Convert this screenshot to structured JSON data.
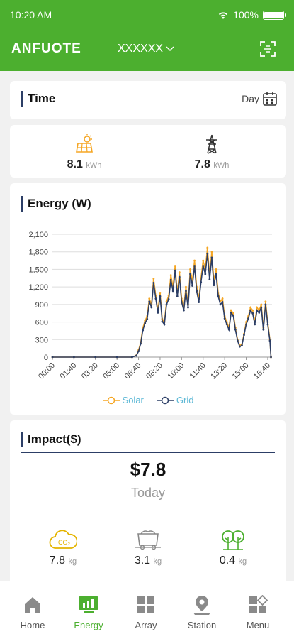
{
  "status_bar": {
    "time": "10:20 AM",
    "battery": "100%",
    "battery_level": 1.0
  },
  "header": {
    "brand": "ANFUOTE",
    "station": "XXXXXX"
  },
  "time_card": {
    "title": "Time",
    "period": "Day"
  },
  "summary": {
    "solar": {
      "value": "8.1",
      "unit": "kWh",
      "icon": "solar-panel-icon"
    },
    "grid": {
      "value": "7.8",
      "unit": "kWh",
      "icon": "power-tower-icon"
    }
  },
  "energy_card": {
    "title": "Energy (W)"
  },
  "chart_data": {
    "type": "line",
    "title": "Energy (W)",
    "xlabel": "",
    "ylabel": "",
    "ylim": [
      0,
      2100
    ],
    "yticks": [
      "0",
      "300",
      "600",
      "900",
      "1,200",
      "1,500",
      "1,800",
      "2,100"
    ],
    "xticks": [
      "00:00",
      "01:40",
      "03:20",
      "05:00",
      "06:40",
      "08:20",
      "10:00",
      "11:40",
      "13:20",
      "15:00",
      "16:40"
    ],
    "x_range": [
      0,
      1020
    ],
    "legend_position": "bottom-center",
    "series": [
      {
        "name": "Solar",
        "color": "#f5a623",
        "x": [
          0,
          100,
          200,
          300,
          370,
          390,
          400,
          410,
          420,
          430,
          440,
          450,
          460,
          470,
          480,
          490,
          500,
          510,
          520,
          530,
          540,
          550,
          560,
          570,
          580,
          590,
          600,
          610,
          620,
          630,
          640,
          650,
          660,
          670,
          680,
          690,
          700,
          710,
          720,
          730,
          740,
          750,
          760,
          770,
          780,
          790,
          800,
          810,
          820,
          830,
          840,
          850,
          860,
          870,
          880,
          890,
          900,
          910,
          920,
          930,
          940,
          950,
          960,
          970,
          980,
          990,
          1000,
          1010,
          1015
        ],
        "y": [
          0,
          0,
          0,
          0,
          0,
          30,
          120,
          250,
          500,
          620,
          700,
          1000,
          900,
          1340,
          1050,
          800,
          1100,
          650,
          600,
          950,
          1050,
          1400,
          1200,
          1560,
          1100,
          1450,
          1000,
          850,
          1200,
          900,
          1500,
          1300,
          1650,
          1200,
          1000,
          1350,
          1650,
          1500,
          1870,
          1400,
          1800,
          1300,
          1500,
          1100,
          950,
          1000,
          700,
          600,
          500,
          800,
          750,
          500,
          300,
          200,
          220,
          400,
          600,
          700,
          850,
          800,
          600,
          850,
          800,
          900,
          500,
          950,
          600,
          300,
          0
        ]
      },
      {
        "name": "Grid",
        "color": "#2c3e66",
        "x": [
          0,
          100,
          200,
          300,
          370,
          390,
          400,
          410,
          420,
          430,
          440,
          450,
          460,
          470,
          480,
          490,
          500,
          510,
          520,
          530,
          540,
          550,
          560,
          570,
          580,
          590,
          600,
          610,
          620,
          630,
          640,
          650,
          660,
          670,
          680,
          690,
          700,
          710,
          720,
          730,
          740,
          750,
          760,
          770,
          780,
          790,
          800,
          810,
          820,
          830,
          840,
          850,
          860,
          870,
          880,
          890,
          900,
          910,
          920,
          930,
          940,
          950,
          960,
          970,
          980,
          990,
          1000,
          1010,
          1015
        ],
        "y": [
          0,
          0,
          0,
          0,
          0,
          25,
          100,
          230,
          460,
          580,
          650,
          950,
          850,
          1270,
          1000,
          760,
          1040,
          610,
          560,
          900,
          990,
          1320,
          1130,
          1480,
          1040,
          1370,
          940,
          800,
          1130,
          850,
          1420,
          1220,
          1560,
          1130,
          940,
          1280,
          1560,
          1420,
          1770,
          1330,
          1700,
          1230,
          1420,
          1040,
          900,
          940,
          660,
          560,
          470,
          760,
          710,
          470,
          280,
          180,
          200,
          380,
          560,
          660,
          800,
          750,
          560,
          800,
          760,
          850,
          470,
          900,
          560,
          280,
          0
        ]
      }
    ]
  },
  "impact_card": {
    "title": "Impact($)",
    "value": "$7.8",
    "period": "Today",
    "items": [
      {
        "value": "7.8",
        "unit": "kg",
        "icon": "co2-cloud-icon"
      },
      {
        "value": "3.1",
        "unit": "kg",
        "icon": "coal-cart-icon"
      },
      {
        "value": "0.4",
        "unit": "kg",
        "icon": "trees-icon"
      }
    ]
  },
  "tabs": [
    {
      "label": "Home",
      "icon": "home-icon"
    },
    {
      "label": "Energy",
      "icon": "energy-monitor-icon"
    },
    {
      "label": "Array",
      "icon": "array-grid-icon"
    },
    {
      "label": "Station",
      "icon": "station-pin-icon"
    },
    {
      "label": "Menu",
      "icon": "menu-grid-icon"
    }
  ],
  "colors": {
    "primary": "#4caf2f",
    "accent": "#2c3e66",
    "solar": "#f5a623"
  }
}
